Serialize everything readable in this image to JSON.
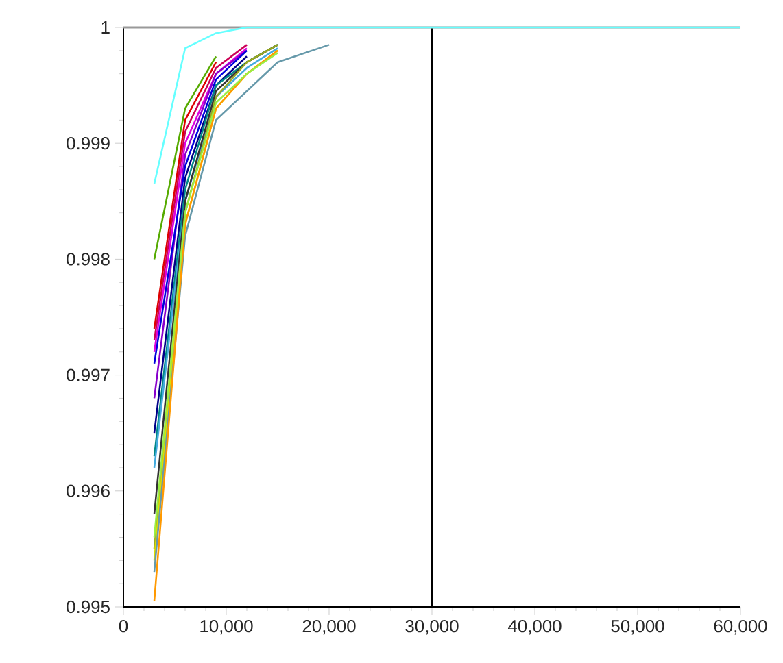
{
  "chart_data": {
    "type": "line",
    "x": [
      3000,
      6000,
      9000,
      12000,
      15000,
      20000,
      30000,
      40000,
      50000,
      60000
    ],
    "series": [
      {
        "color": "#55aa00",
        "values": [
          0.998,
          0.9993,
          0.99975,
          null,
          null,
          null,
          null,
          null,
          null,
          null
        ]
      },
      {
        "color": "#dd0000",
        "values": [
          0.9974,
          0.9992,
          0.9997,
          null,
          null,
          null,
          null,
          null,
          null,
          null
        ]
      },
      {
        "color": "#cc0055",
        "values": [
          0.9973,
          0.9991,
          0.99965,
          0.99985,
          null,
          null,
          null,
          null,
          null,
          null
        ]
      },
      {
        "color": "#dd00dd",
        "values": [
          0.9972,
          0.999,
          0.9996,
          0.99982,
          null,
          null,
          null,
          null,
          null,
          null
        ]
      },
      {
        "color": "#8800cc",
        "values": [
          0.9968,
          0.9989,
          0.9996,
          0.9998,
          null,
          null,
          null,
          null,
          null,
          null
        ]
      },
      {
        "color": "#0000dd",
        "values": [
          0.9971,
          0.9988,
          0.99955,
          0.9998,
          null,
          null,
          null,
          null,
          null,
          null
        ]
      },
      {
        "color": "#000088",
        "values": [
          0.9965,
          0.9987,
          0.9995,
          0.99975,
          null,
          null,
          null,
          null,
          null,
          null
        ]
      },
      {
        "color": "#008888",
        "values": [
          0.9963,
          0.9986,
          0.9995,
          0.9997,
          0.99985,
          null,
          null,
          null,
          null,
          null
        ]
      },
      {
        "color": "#44aadd",
        "values": [
          0.9962,
          0.9985,
          0.9994,
          0.99965,
          0.99982,
          null,
          null,
          null,
          null,
          null
        ]
      },
      {
        "color": "#333333",
        "values": [
          0.9958,
          0.9985,
          0.99945,
          0.9997,
          0.99985,
          null,
          null,
          null,
          null,
          null
        ]
      },
      {
        "color": "#99aa22",
        "values": [
          0.9955,
          0.9984,
          0.9994,
          0.9997,
          0.99985,
          null,
          null,
          null,
          null,
          null
        ]
      },
      {
        "color": "#dddd00",
        "values": [
          0.9954,
          0.9983,
          0.9993,
          0.9996,
          0.9998,
          null,
          null,
          null,
          null,
          null
        ]
      },
      {
        "color": "#6699aa",
        "values": [
          0.9953,
          0.9982,
          0.9992,
          0.99945,
          0.9997,
          0.99985,
          null,
          null,
          null,
          null
        ]
      },
      {
        "color": "#ff9900",
        "values": [
          0.99505,
          0.9983,
          0.9993,
          0.9996,
          0.9998,
          null,
          null,
          null,
          null,
          null
        ]
      },
      {
        "color": "#99ee44",
        "values": [
          0.9956,
          0.9984,
          0.99935,
          0.9996,
          0.99978,
          null,
          null,
          null,
          null,
          null
        ]
      },
      {
        "color": "#66ffff",
        "values": [
          0.99865,
          0.99982,
          0.99995,
          1,
          1,
          1,
          1,
          1,
          1,
          1
        ]
      }
    ],
    "xlim": [
      0,
      60000
    ],
    "ylim": [
      0.995,
      1
    ],
    "xticks": [
      0,
      {
        "value": 10000,
        "label": "10,000"
      },
      {
        "value": 20000,
        "label": "20,000"
      },
      {
        "value": 30000,
        "label": "30,000"
      },
      {
        "value": 40000,
        "label": "40,000"
      },
      {
        "value": 50000,
        "label": "50,000"
      },
      {
        "value": 60000,
        "label": "60,000"
      }
    ],
    "yticks": [
      0.995,
      0.996,
      0.997,
      0.998,
      0.999,
      1
    ],
    "ref_lines": [
      {
        "axis": "x",
        "value": 30000,
        "color": "#000000"
      },
      {
        "axis": "y",
        "value": 1,
        "color": "#999999"
      }
    ]
  }
}
